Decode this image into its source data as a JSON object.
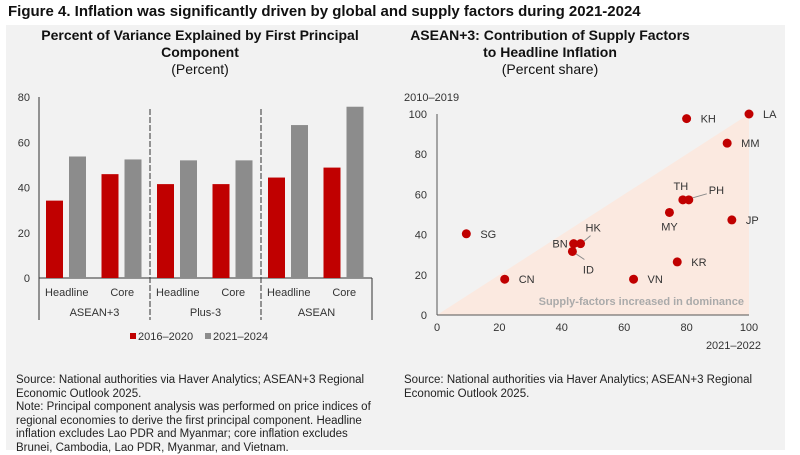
{
  "figure_title": "Figure 4. Inflation was significantly driven by global and supply factors during 2021-2024",
  "chart_data": [
    {
      "type": "bar",
      "title": "Percent of Variance Explained by First Principal Component",
      "subtitle": "(Percent)",
      "groups": [
        "ASEAN+3",
        "Plus-3",
        "ASEAN"
      ],
      "categories": [
        "Headline",
        "Core"
      ],
      "ylim": [
        0,
        80
      ],
      "yticks": [
        0,
        20,
        40,
        60,
        80
      ],
      "legend_position": "bottom",
      "series": [
        {
          "name": "2016–2020",
          "color": "#c00000",
          "values": [
            [
              34.2,
              45.9
            ],
            [
              41.5,
              41.5
            ],
            [
              44.4,
              48.8
            ]
          ]
        },
        {
          "name": "2021–2024",
          "color": "#8c8c8c",
          "values": [
            [
              53.7,
              52.4
            ],
            [
              52,
              52
            ],
            [
              67.6,
              75.7
            ]
          ]
        }
      ],
      "source": "Source: National authorities via Haver Analytics; ASEAN+3 Regional Economic Outlook 2025.",
      "note": "Note: Principal component analysis was performed on price indices of regional economies to derive the first principal component. Headline inflation excludes Lao PDR and Myanmar; core inflation excludes Brunei, Cambodia, Lao PDR, Myanmar, and Vietnam."
    },
    {
      "type": "scatter",
      "title": "ASEAN+3: Contribution of Supply Factors to Headline Inflation",
      "subtitle": "(Percent share)",
      "xlabel": "2021–2022",
      "ylabel": "2010–2019",
      "xlim": [
        0,
        100
      ],
      "ylim": [
        0,
        100
      ],
      "xticks": [
        0,
        20,
        40,
        60,
        80,
        100
      ],
      "yticks": [
        0,
        20,
        40,
        60,
        80,
        100
      ],
      "color": "#c00000",
      "shade_color": "#fbe9e0",
      "annotation": "Supply-factors increased in dominance",
      "points": [
        {
          "label": "SG",
          "x": 9.4,
          "y": 40.4
        },
        {
          "label": "CN",
          "x": 21.7,
          "y": 17.8
        },
        {
          "label": "VN",
          "x": 63,
          "y": 17.8
        },
        {
          "label": "KR",
          "x": 77,
          "y": 26.4
        },
        {
          "label": "JP",
          "x": 94.5,
          "y": 47.3
        },
        {
          "label": "MY",
          "x": 74.5,
          "y": 51
        },
        {
          "label": "TH",
          "x": 78.8,
          "y": 57.3
        },
        {
          "label": "PH",
          "x": 80.7,
          "y": 57.3
        },
        {
          "label": "KH",
          "x": 80,
          "y": 97.7
        },
        {
          "label": "LA",
          "x": 100,
          "y": 100
        },
        {
          "label": "MM",
          "x": 93,
          "y": 85.5
        },
        {
          "label": "BN",
          "x": 43.8,
          "y": 35.5
        },
        {
          "label": "HK",
          "x": 46,
          "y": 35.5
        },
        {
          "label": "ID",
          "x": 43.4,
          "y": 31.6
        }
      ],
      "source": "Source: National authorities via Haver Analytics; ASEAN+3 Regional Economic Outlook 2025."
    }
  ]
}
